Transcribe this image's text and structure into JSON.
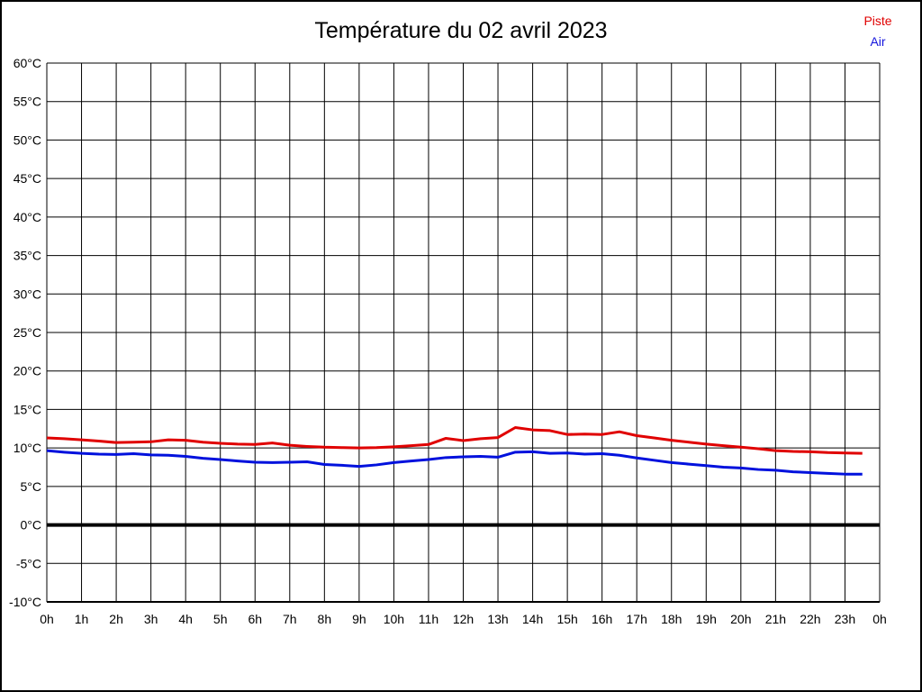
{
  "title": "Température du 02 avril 2023",
  "legend": {
    "items": [
      {
        "label": "Piste",
        "color": "#e00000"
      },
      {
        "label": "Air",
        "color": "#1414dd"
      }
    ]
  },
  "chart_data": {
    "type": "line",
    "title": "Température du 02 avril 2023",
    "grid": true,
    "legend_position": "top-right",
    "x_axis": {
      "unit": "h",
      "xlim": [
        0,
        24
      ],
      "tick_hours": [
        0,
        1,
        2,
        3,
        4,
        5,
        6,
        7,
        8,
        9,
        10,
        11,
        12,
        13,
        14,
        15,
        16,
        17,
        18,
        19,
        20,
        21,
        22,
        23,
        24
      ],
      "tick_labels": [
        "0h",
        "1h",
        "2h",
        "3h",
        "4h",
        "5h",
        "6h",
        "7h",
        "8h",
        "9h",
        "10h",
        "11h",
        "12h",
        "13h",
        "14h",
        "15h",
        "16h",
        "17h",
        "18h",
        "19h",
        "20h",
        "21h",
        "22h",
        "23h",
        "0h"
      ]
    },
    "y_axis": {
      "unit": "°C",
      "ylim": [
        -10,
        60
      ],
      "tick_values": [
        60,
        55,
        50,
        45,
        40,
        35,
        30,
        25,
        20,
        15,
        10,
        5,
        0,
        -5,
        -10
      ],
      "tick_labels": [
        "60°C",
        "55°C",
        "50°C",
        "45°C",
        "40°C",
        "35°C",
        "30°C",
        "25°C",
        "20°C",
        "15°C",
        "10°C",
        "5°C",
        "0°C",
        "-5°C",
        "-10°C"
      ]
    },
    "zero_line": {
      "value": 0,
      "color": "#000000",
      "stroke_width": 4
    },
    "series": [
      {
        "name": "Piste",
        "color": "#e00000",
        "stroke_width": 3,
        "x": [
          0,
          0.5,
          1,
          1.5,
          2,
          2.5,
          3,
          3.5,
          4,
          4.5,
          5,
          5.5,
          6,
          6.5,
          7,
          7.5,
          8,
          8.5,
          9,
          9.5,
          10,
          10.5,
          11,
          11.5,
          12,
          12.5,
          13,
          13.5,
          14,
          14.5,
          15,
          15.5,
          16,
          16.5,
          17,
          17.5,
          18,
          18.5,
          19,
          19.5,
          20,
          20.5,
          21,
          21.5,
          22,
          22.5,
          23,
          23.5
        ],
        "values": [
          11.3,
          11.2,
          11.05,
          10.9,
          10.7,
          10.75,
          10.8,
          11.05,
          11.0,
          10.75,
          10.6,
          10.5,
          10.45,
          10.65,
          10.35,
          10.2,
          10.1,
          10.05,
          10.0,
          10.05,
          10.15,
          10.3,
          10.45,
          11.25,
          10.95,
          11.2,
          11.35,
          12.65,
          12.35,
          12.25,
          11.75,
          11.8,
          11.75,
          12.1,
          11.6,
          11.3,
          11.0,
          10.75,
          10.5,
          10.3,
          10.1,
          9.9,
          9.65,
          9.55,
          9.5,
          9.4,
          9.35,
          9.3
        ]
      },
      {
        "name": "Air",
        "color": "#0011dd",
        "stroke_width": 3,
        "x": [
          0,
          0.5,
          1,
          1.5,
          2,
          2.5,
          3,
          3.5,
          4,
          4.5,
          5,
          5.5,
          6,
          6.5,
          7,
          7.5,
          8,
          8.5,
          9,
          9.5,
          10,
          10.5,
          11,
          11.5,
          12,
          12.5,
          13,
          13.5,
          14,
          14.5,
          15,
          15.5,
          16,
          16.5,
          17,
          17.5,
          18,
          18.5,
          19,
          19.5,
          20,
          20.5,
          21,
          21.5,
          22,
          22.5,
          23,
          23.5
        ],
        "values": [
          9.65,
          9.45,
          9.3,
          9.2,
          9.15,
          9.25,
          9.1,
          9.05,
          8.9,
          8.65,
          8.5,
          8.3,
          8.15,
          8.1,
          8.15,
          8.2,
          7.85,
          7.75,
          7.6,
          7.8,
          8.1,
          8.3,
          8.5,
          8.75,
          8.85,
          8.9,
          8.8,
          9.45,
          9.5,
          9.3,
          9.35,
          9.2,
          9.25,
          9.05,
          8.7,
          8.4,
          8.1,
          7.9,
          7.7,
          7.5,
          7.4,
          7.2,
          7.1,
          6.9,
          6.8,
          6.7,
          6.6,
          6.6
        ]
      }
    ]
  }
}
